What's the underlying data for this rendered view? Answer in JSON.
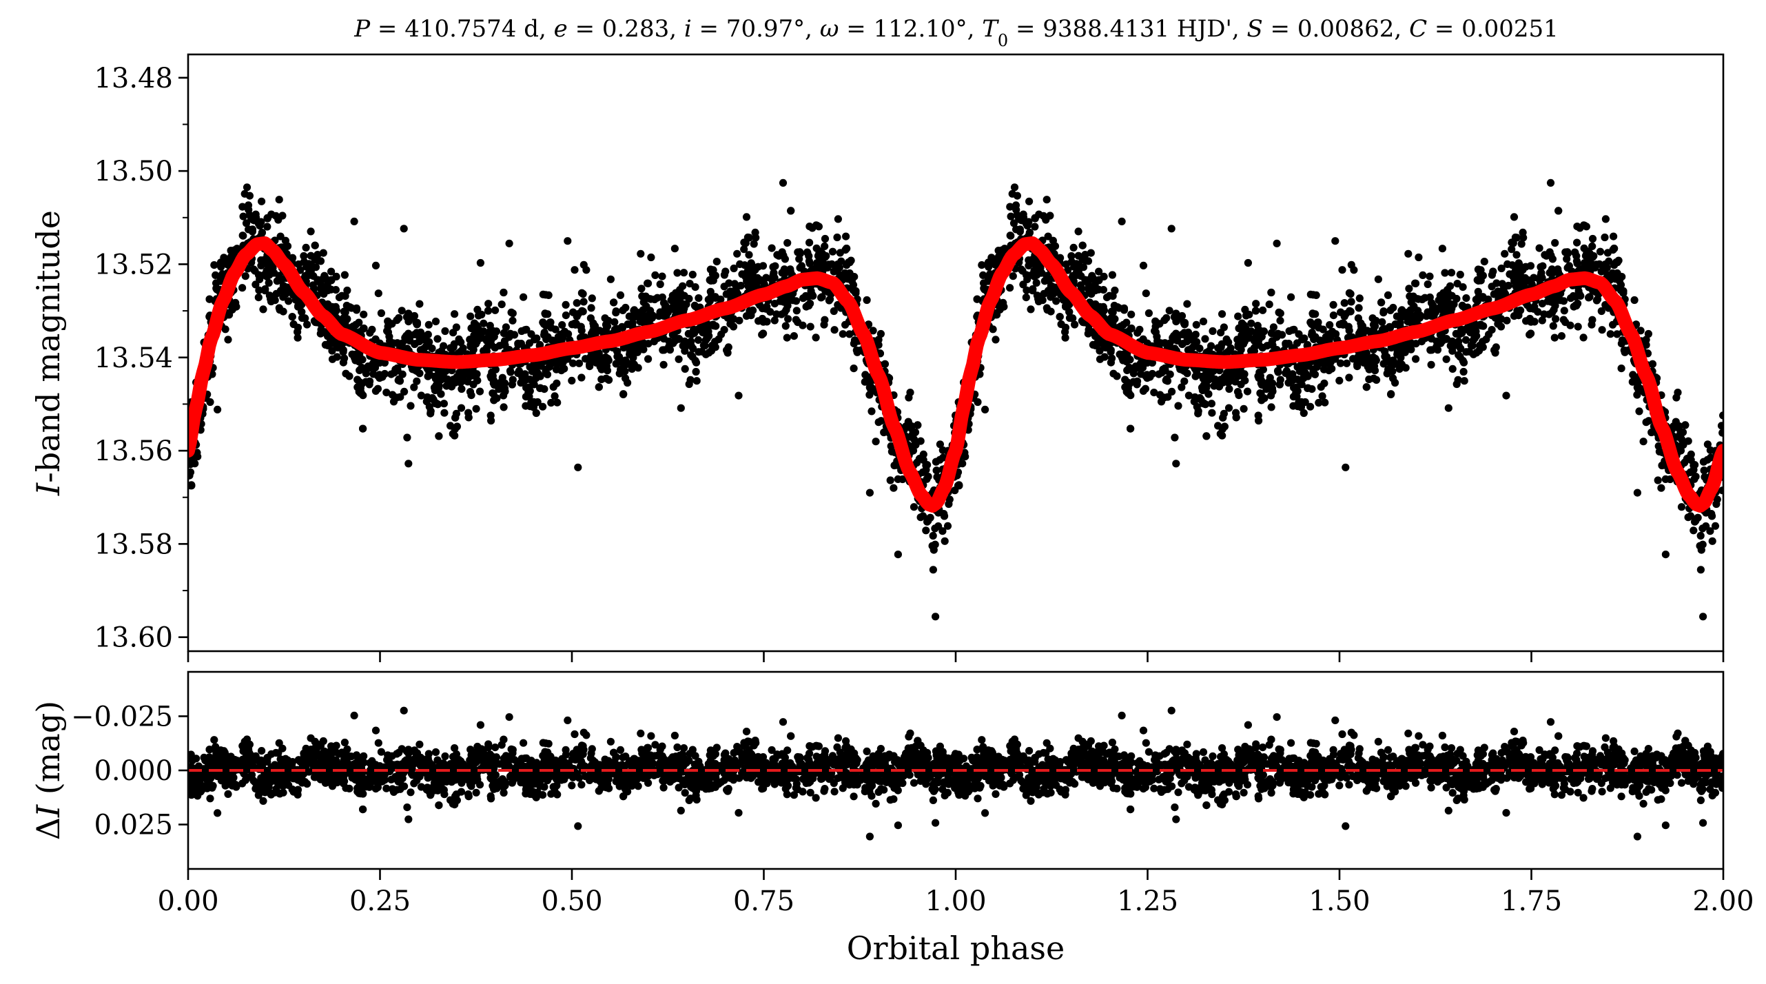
{
  "chart_data": [
    {
      "type": "scatter",
      "panel": "top",
      "title_parts": [
        {
          "t": "P",
          "i": true
        },
        {
          "t": " = 410.7574 d, "
        },
        {
          "t": "e",
          "i": true
        },
        {
          "t": " = 0.283, "
        },
        {
          "t": "i",
          "i": true
        },
        {
          "t": " = 70.97°, "
        },
        {
          "t": "ω",
          "i": true
        },
        {
          "t": " = 112.10°, "
        },
        {
          "t": "T",
          "i": true
        },
        {
          "t": "0",
          "sub": true
        },
        {
          "t": " = 9388.4131 HJD', "
        },
        {
          "t": "S",
          "i": true
        },
        {
          "t": " = 0.00862, "
        },
        {
          "t": "C",
          "i": true
        },
        {
          "t": " = 0.00251"
        }
      ],
      "ylabel_italic": "I",
      "ylabel_rest": "-band magnitude",
      "xlim": [
        0.0,
        2.0
      ],
      "ylim": [
        13.603,
        13.475
      ],
      "y_inverted": true,
      "yticks": [
        13.48,
        13.5,
        13.52,
        13.54,
        13.56,
        13.58,
        13.6
      ],
      "ytick_labels": [
        "13.48",
        "13.50",
        "13.52",
        "13.54",
        "13.56",
        "13.58",
        "13.60"
      ],
      "xticks": [
        0.0,
        0.25,
        0.5,
        0.75,
        1.0,
        1.25,
        1.5,
        1.75,
        2.0
      ],
      "point_color": "#000000",
      "model_color": "#ff0000",
      "model_curve": {
        "phase": [
          0.0,
          0.01,
          0.02,
          0.03,
          0.045,
          0.06,
          0.075,
          0.09,
          0.1,
          0.11,
          0.125,
          0.15,
          0.175,
          0.2,
          0.25,
          0.3,
          0.35,
          0.4,
          0.45,
          0.5,
          0.55,
          0.6,
          0.65,
          0.7,
          0.75,
          0.78,
          0.8,
          0.82,
          0.84,
          0.86,
          0.88,
          0.9,
          0.92,
          0.94,
          0.955,
          0.965,
          0.97,
          0.975,
          0.985,
          1.0
        ],
        "magnitude": [
          13.56,
          13.551,
          13.543,
          13.536,
          13.528,
          13.522,
          13.518,
          13.5157,
          13.5155,
          13.517,
          13.52,
          13.526,
          13.531,
          13.535,
          13.539,
          13.5405,
          13.541,
          13.5405,
          13.5395,
          13.538,
          13.5365,
          13.5345,
          13.532,
          13.5295,
          13.5265,
          13.5247,
          13.5233,
          13.523,
          13.524,
          13.528,
          13.535,
          13.544,
          13.555,
          13.5645,
          13.5695,
          13.5715,
          13.5718,
          13.5712,
          13.568,
          13.56
        ]
      },
      "points_note_count_per_cycle": 2200
    },
    {
      "type": "scatter",
      "panel": "bottom",
      "ylabel_delta": "Δ",
      "ylabel_italic": "I",
      "ylabel_rest": " (mag)",
      "xlabel": "Orbital phase",
      "xlim": [
        0.0,
        2.0
      ],
      "ylim": [
        0.0455,
        -0.0455
      ],
      "y_inverted": true,
      "yticks": [
        -0.025,
        0.0,
        0.025
      ],
      "ytick_labels": [
        "−0.025",
        "0.000",
        "0.025"
      ],
      "xticks": [
        0.0,
        0.25,
        0.5,
        0.75,
        1.0,
        1.25,
        1.5,
        1.75,
        2.0
      ],
      "xtick_labels": [
        "0.00",
        "0.25",
        "0.50",
        "0.75",
        "1.00",
        "1.25",
        "1.50",
        "1.75",
        "2.00"
      ],
      "zero_line": {
        "value": 0.0,
        "color": "#e41a1c",
        "style": "dashed"
      }
    }
  ]
}
